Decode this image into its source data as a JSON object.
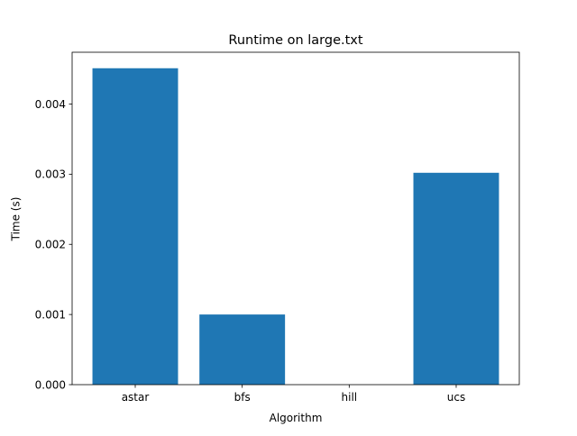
{
  "chart_data": {
    "type": "bar",
    "title": "Runtime on large.txt",
    "xlabel": "Algorithm",
    "ylabel": "Time (s)",
    "categories": [
      "astar",
      "bfs",
      "hill",
      "ucs"
    ],
    "values": [
      0.00451,
      0.001,
      0.0,
      0.00302
    ],
    "ylim": [
      0,
      0.004738
    ],
    "yticks": [
      0.0,
      0.001,
      0.002,
      0.003,
      0.004
    ],
    "ytick_labels": [
      "0.000",
      "0.001",
      "0.002",
      "0.003",
      "0.004"
    ],
    "grid": false,
    "legend": "none",
    "bar_color": "#1f77b4"
  }
}
